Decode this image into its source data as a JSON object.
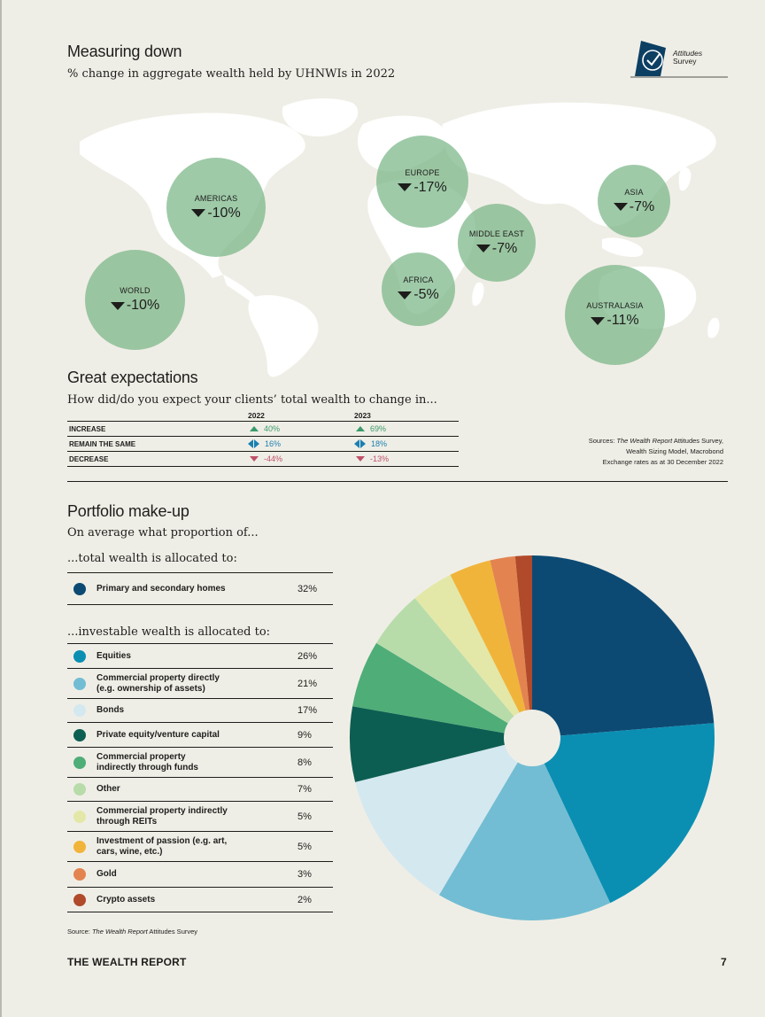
{
  "map_section": {
    "title": "Measuring down",
    "subtitle": "% change in aggregate wealth held by UHNWIs in 2022",
    "regions": [
      {
        "name": "AMERICAS",
        "value": "-10%"
      },
      {
        "name": "EUROPE",
        "value": "-17%"
      },
      {
        "name": "ASIA",
        "value": "-7%"
      },
      {
        "name": "MIDDLE EAST",
        "value": "-7%"
      },
      {
        "name": "WORLD",
        "value": "-10%"
      },
      {
        "name": "AFRICA",
        "value": "-5%"
      },
      {
        "name": "AUSTRALASIA",
        "value": "-11%"
      }
    ]
  },
  "logo": {
    "line1": "Attitudes",
    "line2": "Survey"
  },
  "expectations": {
    "title": "Great expectations",
    "subtitle": "How did/do you expect your clients’ total wealth to change in...",
    "col_2022": "2022",
    "col_2023": "2023",
    "rows": [
      {
        "label": "INCREASE",
        "v2022": "40%",
        "v2023": "69%"
      },
      {
        "label": "REMAIN THE SAME",
        "v2022": "16%",
        "v2023": "18%"
      },
      {
        "label": "DECREASE",
        "v2022": "-44%",
        "v2023": "-13%"
      }
    ]
  },
  "sources": {
    "prefix": "Sources: ",
    "italic": "The Wealth Report",
    "line1_rest": " Attitudes Survey,",
    "line2": "Wealth Sizing Model, Macrobond",
    "line3": "Exchange rates as at 30 December 2022"
  },
  "portfolio": {
    "title": "Portfolio make-up",
    "subtitle": "On average what proportion of...",
    "total_label": "...total wealth is allocated to:",
    "investable_label": "...investable wealth is allocated to:",
    "total_items": [
      {
        "label": "Primary and secondary homes",
        "value": "32%",
        "color": "#0d4a73"
      }
    ],
    "investable_items": [
      {
        "label": "Equities",
        "value": "26%",
        "color": "#0a8fb3"
      },
      {
        "label": "Commercial property directly",
        "label2": "(e.g. ownership of assets)",
        "value": "21%",
        "color": "#72bdd3"
      },
      {
        "label": "Bonds",
        "value": "17%",
        "color": "#d4e8f0"
      },
      {
        "label": "Private equity/venture capital",
        "value": "9%",
        "color": "#0d5e52"
      },
      {
        "label": "Commercial property",
        "label2": "indirectly through funds",
        "value": "8%",
        "color": "#4fad78"
      },
      {
        "label": "Other",
        "value": "7%",
        "color": "#b7dcaa"
      },
      {
        "label": "Commercial property indirectly",
        "label2": "through REITs",
        "value": "5%",
        "color": "#e3e8a8"
      },
      {
        "label": "Investment of passion (e.g. art,",
        "label2": "cars, wine, etc.)",
        "value": "5%",
        "color": "#f1b43a"
      },
      {
        "label": "Gold",
        "value": "3%",
        "color": "#e38450"
      },
      {
        "label": "Crypto assets",
        "value": "2%",
        "color": "#b04a2b"
      }
    ],
    "source_prefix": "Source: ",
    "source_italic": "The Wealth Report",
    "source_rest": " Attitudes Survey"
  },
  "chart_data": {
    "type": "pie",
    "categories": [
      "Primary and secondary homes",
      "Equities",
      "Commercial property directly",
      "Bonds",
      "Private equity/venture capital",
      "Commercial property indirectly through funds",
      "Other",
      "Commercial property indirectly through REITs",
      "Investment of passion",
      "Gold",
      "Crypto assets"
    ],
    "values": [
      32,
      26,
      21,
      17,
      9,
      8,
      7,
      5,
      5,
      3,
      2
    ],
    "colors": [
      "#0d4a73",
      "#0a8fb3",
      "#72bdd3",
      "#d4e8f0",
      "#0d5e52",
      "#4fad78",
      "#b7dcaa",
      "#e3e8a8",
      "#f1b43a",
      "#e38450",
      "#b04a2b"
    ],
    "donut_hole": true,
    "start": "12 o'clock",
    "direction": "clockwise"
  },
  "footer": {
    "title": "THE WEALTH REPORT",
    "page": "7"
  }
}
